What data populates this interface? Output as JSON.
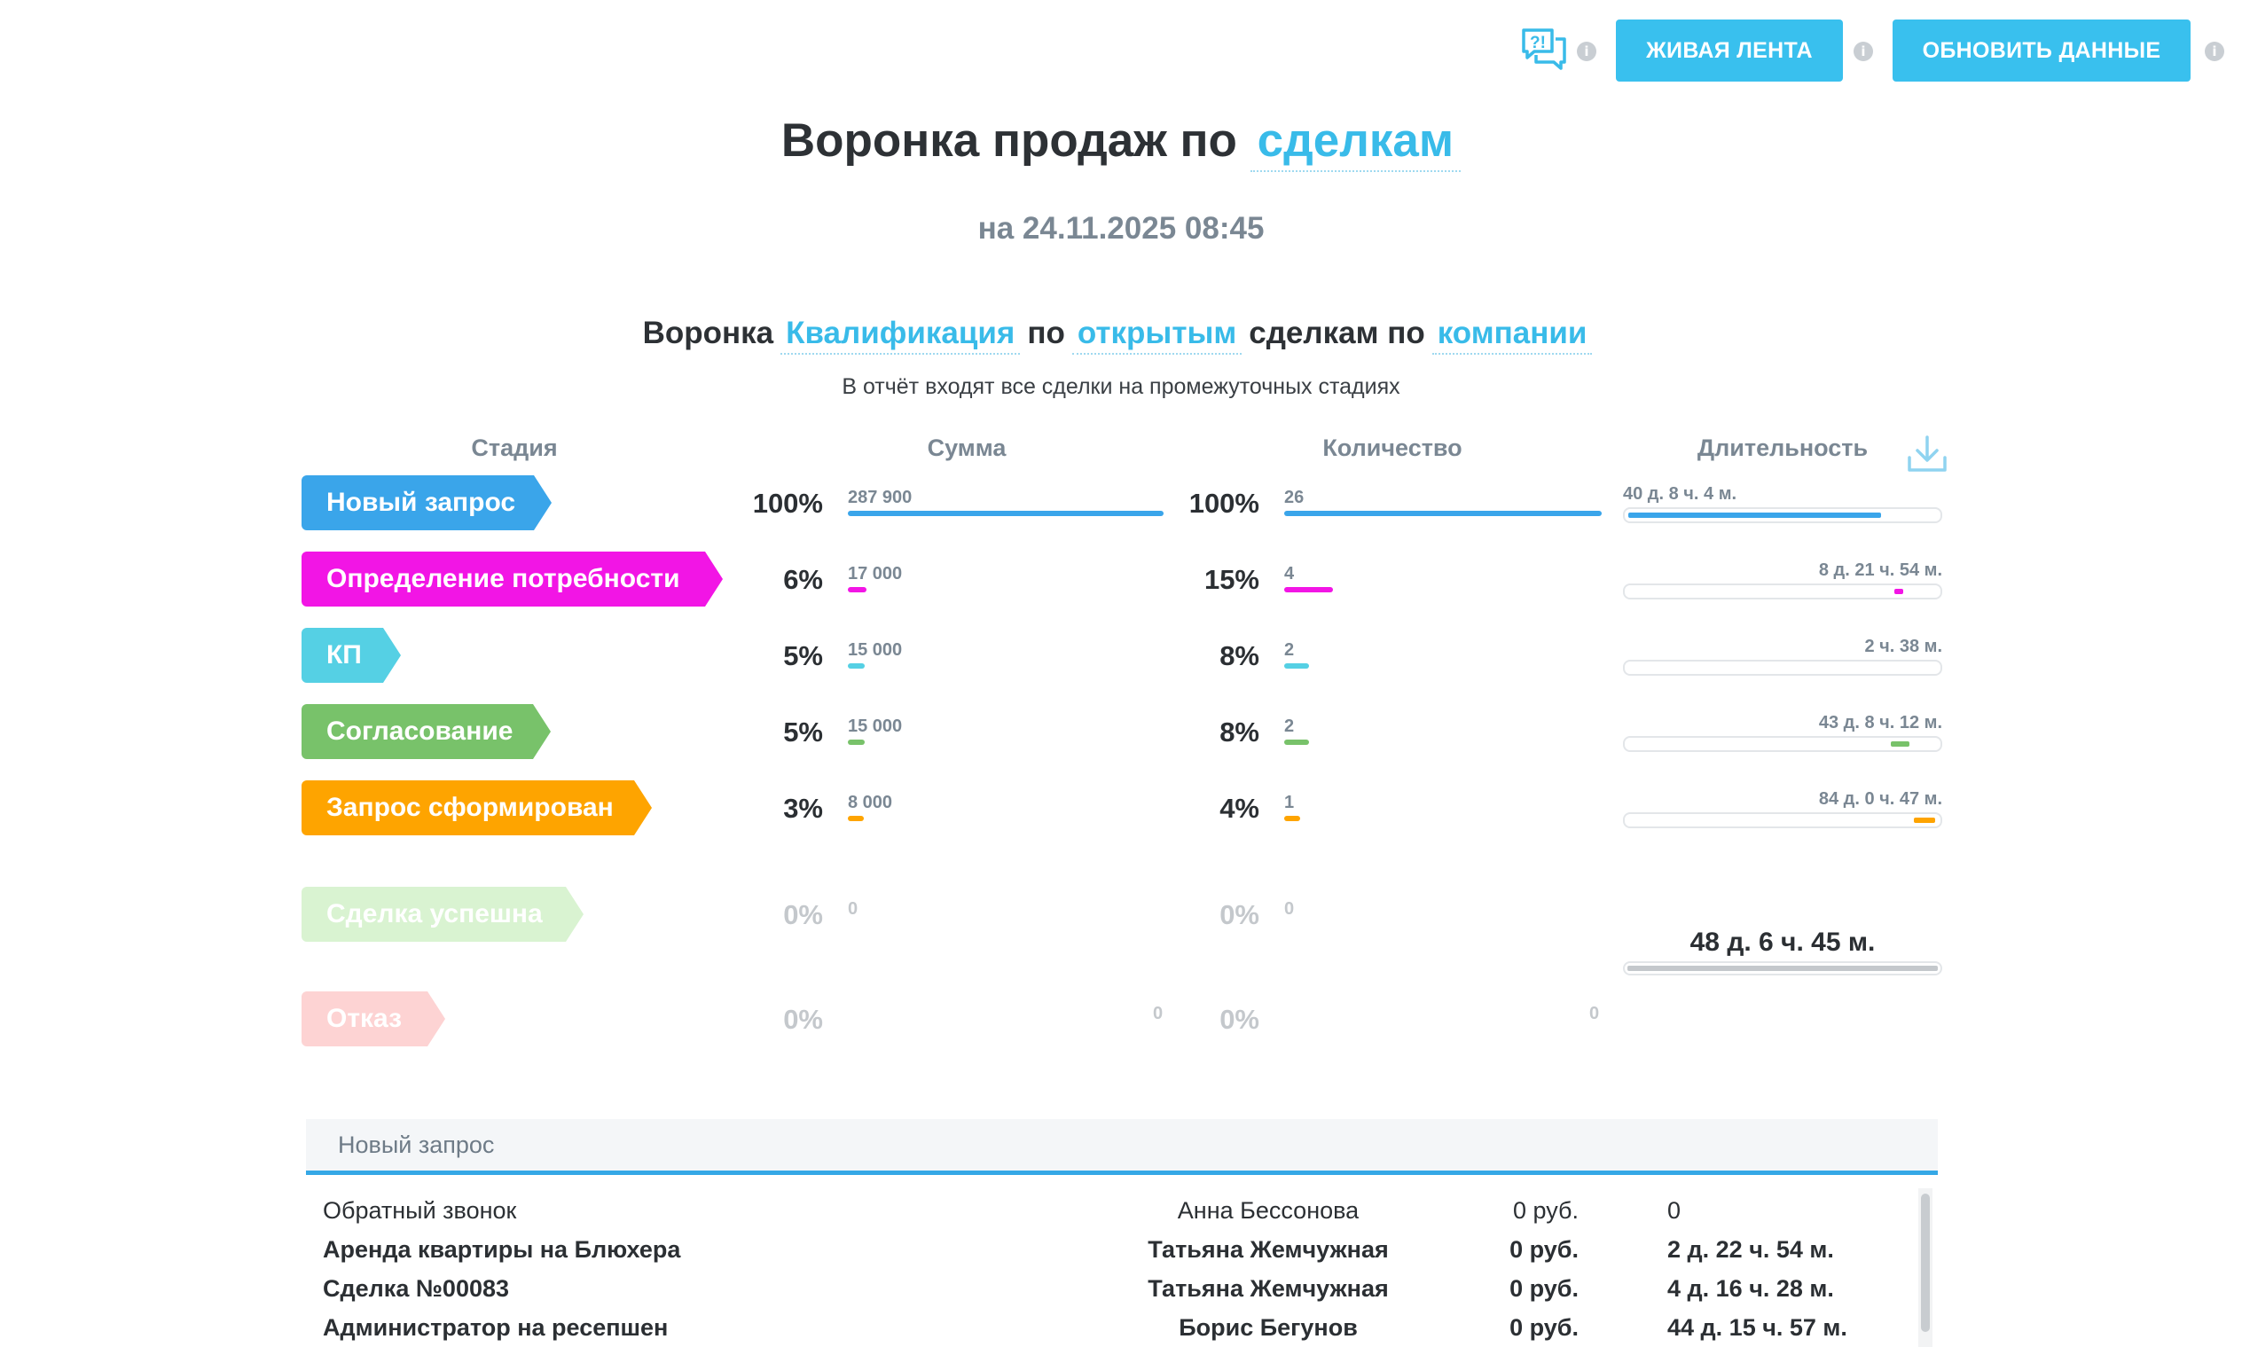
{
  "toolbar": {
    "live_feed_label": "ЖИВАЯ ЛЕНТА",
    "refresh_label": "ОБНОВИТЬ ДАННЫЕ",
    "info_glyph": "i",
    "chat_icon_text": "?!"
  },
  "header": {
    "title_prefix": "Воронка продаж по",
    "title_link": "сделкам",
    "date": "на 24.11.2025 08:45"
  },
  "filter": {
    "w1": "Воронка",
    "funnel_link": "Квалификация",
    "w2": "по",
    "status_link": "открытым",
    "w3": "сделкам по",
    "group_link": "компании",
    "note": "В отчёт входят все сделки на промежуточных стадиях"
  },
  "columns": {
    "stage": "Стадия",
    "sum": "Сумма",
    "count": "Количество",
    "duration": "Длительность"
  },
  "stages": [
    {
      "label": "Новый запрос",
      "color": "#3aa5ea",
      "sum_pct": "100%",
      "sum": "287 900",
      "sum_fraction": 1.0,
      "count_pct": "100%",
      "count": "26",
      "count_fraction": 1.0,
      "duration": "40 д. 8 ч. 4 м.",
      "duration_fraction": 0.82
    },
    {
      "label": "Определение потребности",
      "color": "#f215e5",
      "sum_pct": "6%",
      "sum": "17 000",
      "sum_fraction": 0.059,
      "count_pct": "15%",
      "count": "4",
      "count_fraction": 0.154,
      "duration": "8 д. 21 ч. 54 м.",
      "duration_fraction": 0.02
    },
    {
      "label": "КП",
      "color": "#55d0e4",
      "sum_pct": "5%",
      "sum": "15 000",
      "sum_fraction": 0.052,
      "count_pct": "8%",
      "count": "2",
      "count_fraction": 0.077,
      "duration": "2 ч. 38 м.",
      "duration_fraction": 0.0
    },
    {
      "label": "Согласование",
      "color": "#78c26a",
      "sum_pct": "5%",
      "sum": "15 000",
      "sum_fraction": 0.052,
      "count_pct": "8%",
      "count": "2",
      "count_fraction": 0.077,
      "duration": "43 д. 8 ч. 12 м.",
      "duration_fraction": 0.06
    },
    {
      "label": "Запрос сформирован",
      "color": "#fea400",
      "sum_pct": "3%",
      "sum": "8 000",
      "sum_fraction": 0.028,
      "count_pct": "4%",
      "count": "1",
      "count_fraction": 0.038,
      "duration": "84 д. 0 ч. 47 м.",
      "duration_fraction": 0.07
    }
  ],
  "closed_stages": [
    {
      "label": "Сделка успешна",
      "color": "#d9f3d1",
      "sum_pct": "0%",
      "sum": "0",
      "count_pct": "0%",
      "count": "0"
    },
    {
      "label": "Отказ",
      "color": "#fdd3d3",
      "sum_pct": "0%",
      "sum": "0",
      "count_pct": "0%",
      "count": "0"
    }
  ],
  "total_duration": "48 д. 6 ч. 45 м.",
  "details": {
    "tab": "Новый запрос",
    "rows": [
      {
        "name": "Обратный звонок",
        "manager": "Анна Бессонова",
        "sum": "0 руб.",
        "duration": "0",
        "bold": false
      },
      {
        "name": "Аренда квартиры на Блюхера",
        "manager": "Татьяна Жемчужная",
        "sum": "0 руб.",
        "duration": "2 д. 22 ч. 54 м.",
        "bold": true
      },
      {
        "name": "Сделка №00083",
        "manager": "Татьяна Жемчужная",
        "sum": "0 руб.",
        "duration": "4 д. 16 ч. 28 м.",
        "bold": true
      },
      {
        "name": "Администратор на ресепшен",
        "manager": "Борис Бегунов",
        "sum": "0 руб.",
        "duration": "44 д. 15 ч. 57 м.",
        "bold": true
      }
    ]
  }
}
